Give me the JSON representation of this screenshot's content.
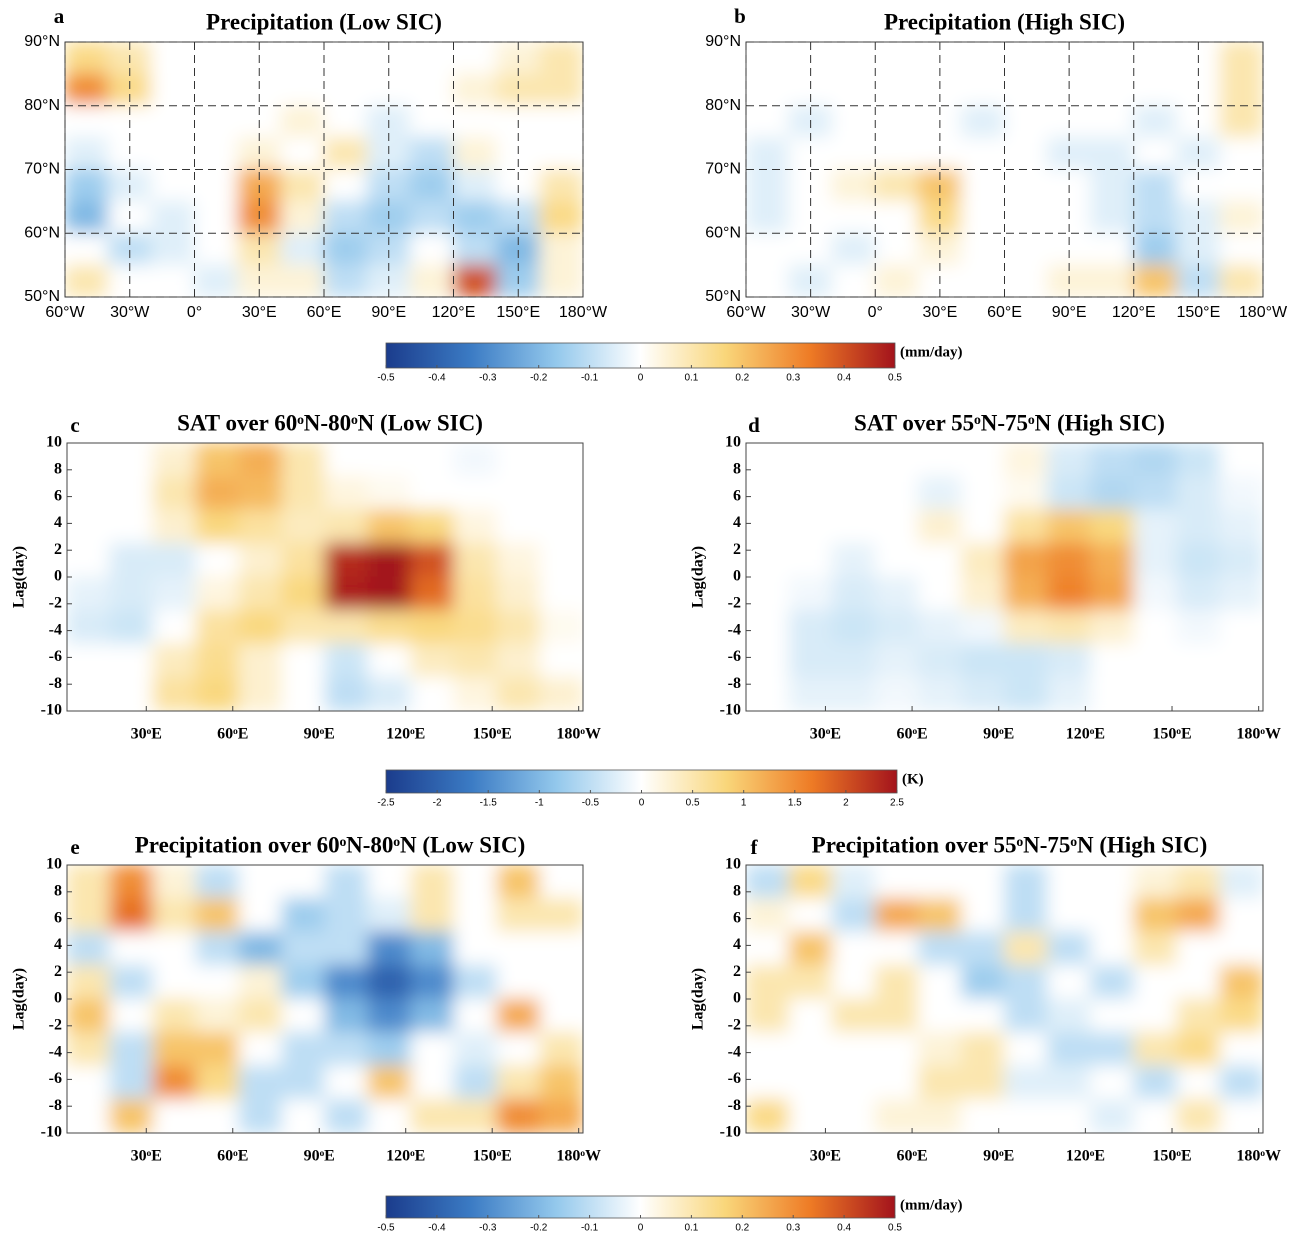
{
  "chart_data": [
    {
      "type": "heatmap",
      "label": "a",
      "title": "Precipitation (Low SIC)",
      "grid": true,
      "xlim": [
        -60,
        180
      ],
      "ylim": [
        50,
        90
      ],
      "xticks": [
        {
          "value": -60,
          "label": "60°W"
        },
        {
          "value": -30,
          "label": "30°W"
        },
        {
          "value": 0,
          "label": "0°"
        },
        {
          "value": 30,
          "label": "30°E"
        },
        {
          "value": 60,
          "label": "60°E"
        },
        {
          "value": 90,
          "label": "90°E"
        },
        {
          "value": 120,
          "label": "120°E"
        },
        {
          "value": 150,
          "label": "150°E"
        },
        {
          "value": 180,
          "label": "180°W"
        }
      ],
      "yticks": [
        {
          "value": 50,
          "label": "50°N"
        },
        {
          "value": 60,
          "label": "60°N"
        },
        {
          "value": 70,
          "label": "70°N"
        },
        {
          "value": 80,
          "label": "80°N"
        },
        {
          "value": 90,
          "label": "90°N"
        }
      ],
      "z": [
        [
          0.15,
          0.1,
          0,
          0,
          0,
          0,
          0,
          0,
          0,
          0,
          0.05,
          0.1
        ],
        [
          0.3,
          0.15,
          0,
          0,
          0,
          0,
          0,
          0,
          0,
          0.05,
          0.1,
          0.1
        ],
        [
          0,
          0,
          0,
          0,
          0,
          0.05,
          0,
          -0.05,
          0,
          0,
          0,
          0
        ],
        [
          -0.05,
          0,
          0,
          0,
          0.05,
          0,
          0.1,
          -0.05,
          -0.1,
          0.05,
          0,
          0
        ],
        [
          -0.15,
          -0.05,
          0,
          0,
          0.25,
          0.1,
          0,
          -0.1,
          -0.15,
          -0.05,
          0,
          0.1
        ],
        [
          -0.2,
          0,
          -0.05,
          0,
          0.3,
          0.05,
          -0.1,
          -0.15,
          -0.1,
          -0.15,
          -0.1,
          0.15
        ],
        [
          0,
          -0.1,
          -0.05,
          0,
          0.1,
          -0.05,
          -0.15,
          -0.1,
          0,
          -0.1,
          -0.2,
          0.05
        ],
        [
          0.1,
          0,
          0,
          -0.05,
          0.05,
          0.05,
          -0.1,
          -0.05,
          0.05,
          0.4,
          -0.15,
          0.05
        ]
      ]
    },
    {
      "type": "heatmap",
      "label": "b",
      "title": "Precipitation (High SIC)",
      "grid": true,
      "xlim": [
        -60,
        180
      ],
      "ylim": [
        50,
        90
      ],
      "xticks": [
        {
          "value": -60,
          "label": "60°W"
        },
        {
          "value": -30,
          "label": "30°W"
        },
        {
          "value": 0,
          "label": "0°"
        },
        {
          "value": 30,
          "label": "30°E"
        },
        {
          "value": 60,
          "label": "60°E"
        },
        {
          "value": 90,
          "label": "90°E"
        },
        {
          "value": 120,
          "label": "120°E"
        },
        {
          "value": 150,
          "label": "150°E"
        },
        {
          "value": 180,
          "label": "180°W"
        }
      ],
      "yticks": [
        {
          "value": 50,
          "label": "50°N"
        },
        {
          "value": 60,
          "label": "60°N"
        },
        {
          "value": 70,
          "label": "70°N"
        },
        {
          "value": 80,
          "label": "80°N"
        },
        {
          "value": 90,
          "label": "90°N"
        }
      ],
      "z": [
        [
          0,
          0,
          0,
          0,
          0,
          0,
          0,
          0,
          0,
          0,
          0,
          0.1
        ],
        [
          0,
          0,
          0,
          0,
          0,
          0,
          0,
          0,
          0,
          0,
          0,
          0.1
        ],
        [
          0,
          -0.05,
          0,
          0,
          0,
          -0.05,
          0,
          0,
          0,
          -0.05,
          0,
          0.1
        ],
        [
          -0.05,
          0,
          0,
          0,
          0,
          0,
          0,
          -0.05,
          -0.05,
          0,
          -0.05,
          0
        ],
        [
          -0.05,
          0,
          0.05,
          0.1,
          0.2,
          0,
          0,
          0,
          -0.05,
          -0.1,
          0,
          0
        ],
        [
          -0.05,
          0,
          0,
          0,
          0.15,
          0,
          0,
          0,
          -0.05,
          -0.1,
          -0.05,
          0.05
        ],
        [
          0,
          0,
          -0.05,
          0,
          0.05,
          0,
          0,
          0,
          0,
          -0.15,
          -0.05,
          0
        ],
        [
          0,
          -0.05,
          0,
          0.05,
          0,
          0,
          0,
          0.05,
          0.05,
          0.2,
          -0.1,
          0.1
        ]
      ]
    },
    {
      "type": "colorbar",
      "label": "(mm/day)",
      "lim": [
        -0.5,
        0.5
      ],
      "ticks": [
        -0.5,
        -0.4,
        -0.3,
        -0.2,
        -0.1,
        0,
        0.1,
        0.2,
        0.3,
        0.4,
        0.5
      ],
      "colors": [
        "#1b3c8c",
        "#3b7bc4",
        "#93c8ec",
        "#ffffff",
        "#f9d67a",
        "#ee7b25",
        "#a3131c"
      ]
    },
    {
      "type": "heatmap",
      "label": "c",
      "title": "SAT over 60ᵒN-80ᵒN (Low SIC)",
      "ylabel": "Lag(day)",
      "grid": false,
      "xlim": [
        2.5,
        181.5
      ],
      "ylim": [
        -10,
        10
      ],
      "xticks": [
        {
          "value": 30,
          "label": "30ᵒE"
        },
        {
          "value": 60,
          "label": "60ᵒE"
        },
        {
          "value": 90,
          "label": "90ᵒE"
        },
        {
          "value": 120,
          "label": "120ᵒE"
        },
        {
          "value": 150,
          "label": "150ᵒE"
        },
        {
          "value": 180,
          "label": "180ᵒW"
        }
      ],
      "yticks": [
        -10,
        -8,
        -6,
        -4,
        -2,
        0,
        2,
        4,
        6,
        8,
        10
      ],
      "z": [
        [
          0,
          0,
          0.3,
          1.0,
          1.2,
          0.5,
          0,
          0,
          0,
          -0.1,
          0,
          0
        ],
        [
          0,
          0,
          0.5,
          1.2,
          1.1,
          0.5,
          0.2,
          0.1,
          0,
          0,
          0,
          0
        ],
        [
          0,
          0,
          0.3,
          0.8,
          0.6,
          0.4,
          0.5,
          1.0,
          0.8,
          0.2,
          0,
          0
        ],
        [
          0,
          -0.3,
          -0.3,
          0,
          0.3,
          0.6,
          2.3,
          2.6,
          2.0,
          0.5,
          0.2,
          0
        ],
        [
          -0.2,
          -0.3,
          -0.2,
          0.2,
          0.5,
          0.8,
          2.4,
          2.6,
          1.8,
          0.6,
          0.3,
          0
        ],
        [
          -0.3,
          -0.4,
          0,
          0.6,
          0.8,
          0.5,
          0.5,
          0.7,
          0.8,
          0.7,
          0.5,
          0.1
        ],
        [
          0,
          0,
          0.4,
          0.7,
          0.3,
          0,
          -0.4,
          0,
          0.4,
          0.5,
          0.3,
          0
        ],
        [
          0,
          0,
          0.6,
          0.8,
          0.3,
          0,
          -0.5,
          -0.3,
          0,
          0.2,
          0.5,
          0.3
        ]
      ]
    },
    {
      "type": "heatmap",
      "label": "d",
      "title": "SAT over 55ᵒN-75ᵒN (High SIC)",
      "ylabel": "Lag(day)",
      "grid": false,
      "xlim": [
        2.5,
        181.5
      ],
      "ylim": [
        -10,
        10
      ],
      "xticks": [
        {
          "value": 30,
          "label": "30ᵒE"
        },
        {
          "value": 60,
          "label": "60ᵒE"
        },
        {
          "value": 90,
          "label": "90ᵒE"
        },
        {
          "value": 120,
          "label": "120ᵒE"
        },
        {
          "value": 150,
          "label": "150ᵒE"
        },
        {
          "value": 180,
          "label": "180ᵒW"
        }
      ],
      "yticks": [
        -10,
        -8,
        -6,
        -4,
        -2,
        0,
        2,
        4,
        6,
        8,
        10
      ],
      "z": [
        [
          0,
          0,
          0,
          0,
          0,
          0,
          0.2,
          -0.3,
          -0.5,
          -0.6,
          -0.4,
          0
        ],
        [
          0,
          0,
          0,
          0,
          -0.2,
          0,
          0.1,
          -0.4,
          -0.6,
          -0.5,
          -0.3,
          -0.1
        ],
        [
          0,
          0,
          0,
          0,
          0.3,
          0,
          0.6,
          1.0,
          0.8,
          -0.2,
          -0.3,
          -0.2
        ],
        [
          0,
          0,
          -0.2,
          0,
          0,
          0.4,
          1.3,
          1.5,
          1.2,
          -0.2,
          -0.4,
          -0.3
        ],
        [
          0,
          -0.1,
          -0.3,
          -0.2,
          0,
          0.3,
          1.2,
          1.6,
          1.3,
          -0.1,
          -0.3,
          -0.2
        ],
        [
          0,
          -0.3,
          -0.4,
          -0.3,
          -0.2,
          -0.1,
          0.4,
          0.5,
          0.3,
          0,
          -0.1,
          0
        ],
        [
          0,
          -0.3,
          -0.3,
          -0.2,
          -0.3,
          -0.4,
          -0.4,
          -0.3,
          0,
          0,
          0,
          0
        ],
        [
          0,
          -0.2,
          -0.2,
          -0.1,
          -0.2,
          -0.3,
          -0.4,
          -0.2,
          0,
          0,
          0,
          0
        ]
      ]
    },
    {
      "type": "colorbar",
      "label": "(K)",
      "lim": [
        -2.5,
        2.5
      ],
      "ticks": [
        -2.5,
        -2,
        -1.5,
        -1,
        -0.5,
        0,
        0.5,
        1,
        1.5,
        2,
        2.5
      ],
      "colors": [
        "#1b3c8c",
        "#3b7bc4",
        "#93c8ec",
        "#ffffff",
        "#f9d67a",
        "#ee7b25",
        "#a3131c"
      ]
    },
    {
      "type": "heatmap",
      "label": "e",
      "title": "Precipitation over 60ᵒN-80ᵒN (Low SIC)",
      "ylabel": "Lag(day)",
      "grid": false,
      "xlim": [
        2.5,
        181.5
      ],
      "ylim": [
        -10,
        10
      ],
      "xticks": [
        {
          "value": 30,
          "label": "30ᵒE"
        },
        {
          "value": 60,
          "label": "60ᵒE"
        },
        {
          "value": 90,
          "label": "90ᵒE"
        },
        {
          "value": 120,
          "label": "120ᵒE"
        },
        {
          "value": 150,
          "label": "150ᵒE"
        },
        {
          "value": 180,
          "label": "180ᵒW"
        }
      ],
      "yticks": [
        -10,
        -8,
        -6,
        -4,
        -2,
        0,
        2,
        4,
        6,
        8,
        10
      ],
      "z": [
        [
          0.1,
          0.3,
          0.05,
          -0.1,
          0,
          0,
          -0.1,
          0,
          0.1,
          0,
          0.2,
          0
        ],
        [
          0.1,
          0.35,
          0.1,
          0.2,
          0,
          -0.15,
          -0.1,
          -0.05,
          0.1,
          0,
          0.1,
          0.1
        ],
        [
          -0.1,
          0,
          0,
          -0.1,
          -0.2,
          -0.1,
          -0.1,
          -0.3,
          -0.2,
          0,
          0,
          0
        ],
        [
          0.1,
          -0.1,
          0,
          0,
          0.05,
          -0.15,
          -0.3,
          -0.4,
          -0.3,
          -0.1,
          0,
          0
        ],
        [
          0.2,
          0,
          0.1,
          0.05,
          0.1,
          0,
          -0.2,
          -0.3,
          -0.2,
          0,
          0.25,
          0
        ],
        [
          0.1,
          -0.1,
          0.2,
          0.2,
          0,
          -0.1,
          -0.1,
          -0.15,
          0,
          -0.05,
          0,
          0.1
        ],
        [
          0,
          -0.1,
          0.3,
          0.15,
          -0.1,
          -0.1,
          0,
          0.2,
          0,
          -0.1,
          0.1,
          0.2
        ],
        [
          0,
          0.2,
          0,
          0,
          -0.1,
          0,
          -0.1,
          0,
          0.1,
          0.1,
          0.3,
          0.25
        ]
      ]
    },
    {
      "type": "heatmap",
      "label": "f",
      "title": "Precipitation over 55ᵒN-75ᵒN (High SIC)",
      "ylabel": "Lag(day)",
      "grid": false,
      "xlim": [
        2.5,
        181.5
      ],
      "ylim": [
        -10,
        10
      ],
      "xticks": [
        {
          "value": 30,
          "label": "30ᵒE"
        },
        {
          "value": 60,
          "label": "60ᵒE"
        },
        {
          "value": 90,
          "label": "90ᵒE"
        },
        {
          "value": 120,
          "label": "120ᵒE"
        },
        {
          "value": 150,
          "label": "150ᵒE"
        },
        {
          "value": 180,
          "label": "180ᵒW"
        }
      ],
      "yticks": [
        -10,
        -8,
        -6,
        -4,
        -2,
        0,
        2,
        4,
        6,
        8,
        10
      ],
      "z": [
        [
          -0.1,
          0.15,
          -0.05,
          0,
          0,
          0,
          -0.1,
          0,
          0,
          0.05,
          0.1,
          -0.05
        ],
        [
          0.05,
          0,
          -0.1,
          0.25,
          0.2,
          0,
          -0.1,
          0,
          0,
          0.2,
          0.25,
          0
        ],
        [
          0,
          0.2,
          0,
          0,
          -0.1,
          -0.1,
          0.1,
          -0.1,
          0,
          0.1,
          0,
          0
        ],
        [
          0.1,
          0.1,
          0,
          0.1,
          0,
          -0.15,
          -0.1,
          0,
          -0.1,
          0,
          0,
          0.2
        ],
        [
          0.1,
          0,
          0.1,
          0.1,
          0,
          0,
          -0.1,
          -0.05,
          0,
          0,
          0.1,
          0.15
        ],
        [
          0,
          0,
          0,
          0,
          0.05,
          0.1,
          0,
          -0.1,
          -0.1,
          0.1,
          0.15,
          0
        ],
        [
          0,
          0,
          0,
          0,
          0.1,
          0.1,
          -0.05,
          -0.05,
          0,
          -0.1,
          0,
          -0.1
        ],
        [
          0.15,
          0,
          0,
          0.05,
          0.05,
          0,
          0,
          0,
          -0.05,
          0,
          0.1,
          0
        ]
      ]
    },
    {
      "type": "colorbar",
      "label": "(mm/day)",
      "lim": [
        -0.5,
        0.5
      ],
      "ticks": [
        -0.5,
        -0.4,
        -0.3,
        -0.2,
        -0.1,
        0,
        0.1,
        0.2,
        0.3,
        0.4,
        0.5
      ],
      "colors": [
        "#1b3c8c",
        "#3b7bc4",
        "#93c8ec",
        "#ffffff",
        "#f9d67a",
        "#ee7b25",
        "#a3131c"
      ]
    }
  ]
}
